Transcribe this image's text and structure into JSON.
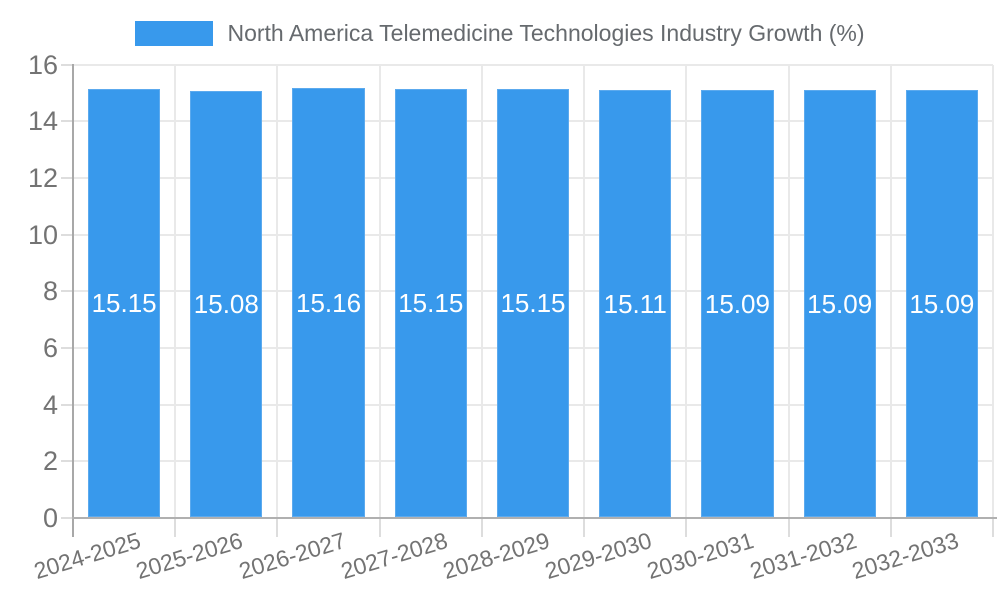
{
  "chart_data": {
    "type": "bar",
    "title": "North America Telemedicine Technologies Industry Growth (%)",
    "categories": [
      "2024-2025",
      "2025-2026",
      "2026-2027",
      "2027-2028",
      "2028-2029",
      "2029-2030",
      "2030-2031",
      "2031-2032",
      "2032-2033"
    ],
    "values": [
      15.15,
      15.08,
      15.16,
      15.15,
      15.15,
      15.11,
      15.09,
      15.09,
      15.09
    ],
    "value_labels": [
      "15.15",
      "15.08",
      "15.16",
      "15.15",
      "15.15",
      "15.11",
      "15.09",
      "15.09",
      "15.09"
    ],
    "xlabel": "",
    "ylabel": "",
    "ylim": [
      0,
      16
    ],
    "yticks": [
      0,
      2,
      4,
      6,
      8,
      10,
      12,
      14,
      16
    ],
    "ytick_labels": [
      "0",
      "2",
      "4",
      "6",
      "8",
      "10",
      "12",
      "14",
      "16"
    ],
    "grid": true,
    "legend_position": "top",
    "colors": {
      "bar": "#3899ec",
      "bar_border": "#5caaee",
      "value_label": "#ffffff",
      "axis": "#b0b0b0",
      "y_axis": "#a8a8a8",
      "gridline": "#e9e9e9",
      "tick": "#dddddd",
      "text": "#737373",
      "background": "#ffffff"
    }
  }
}
